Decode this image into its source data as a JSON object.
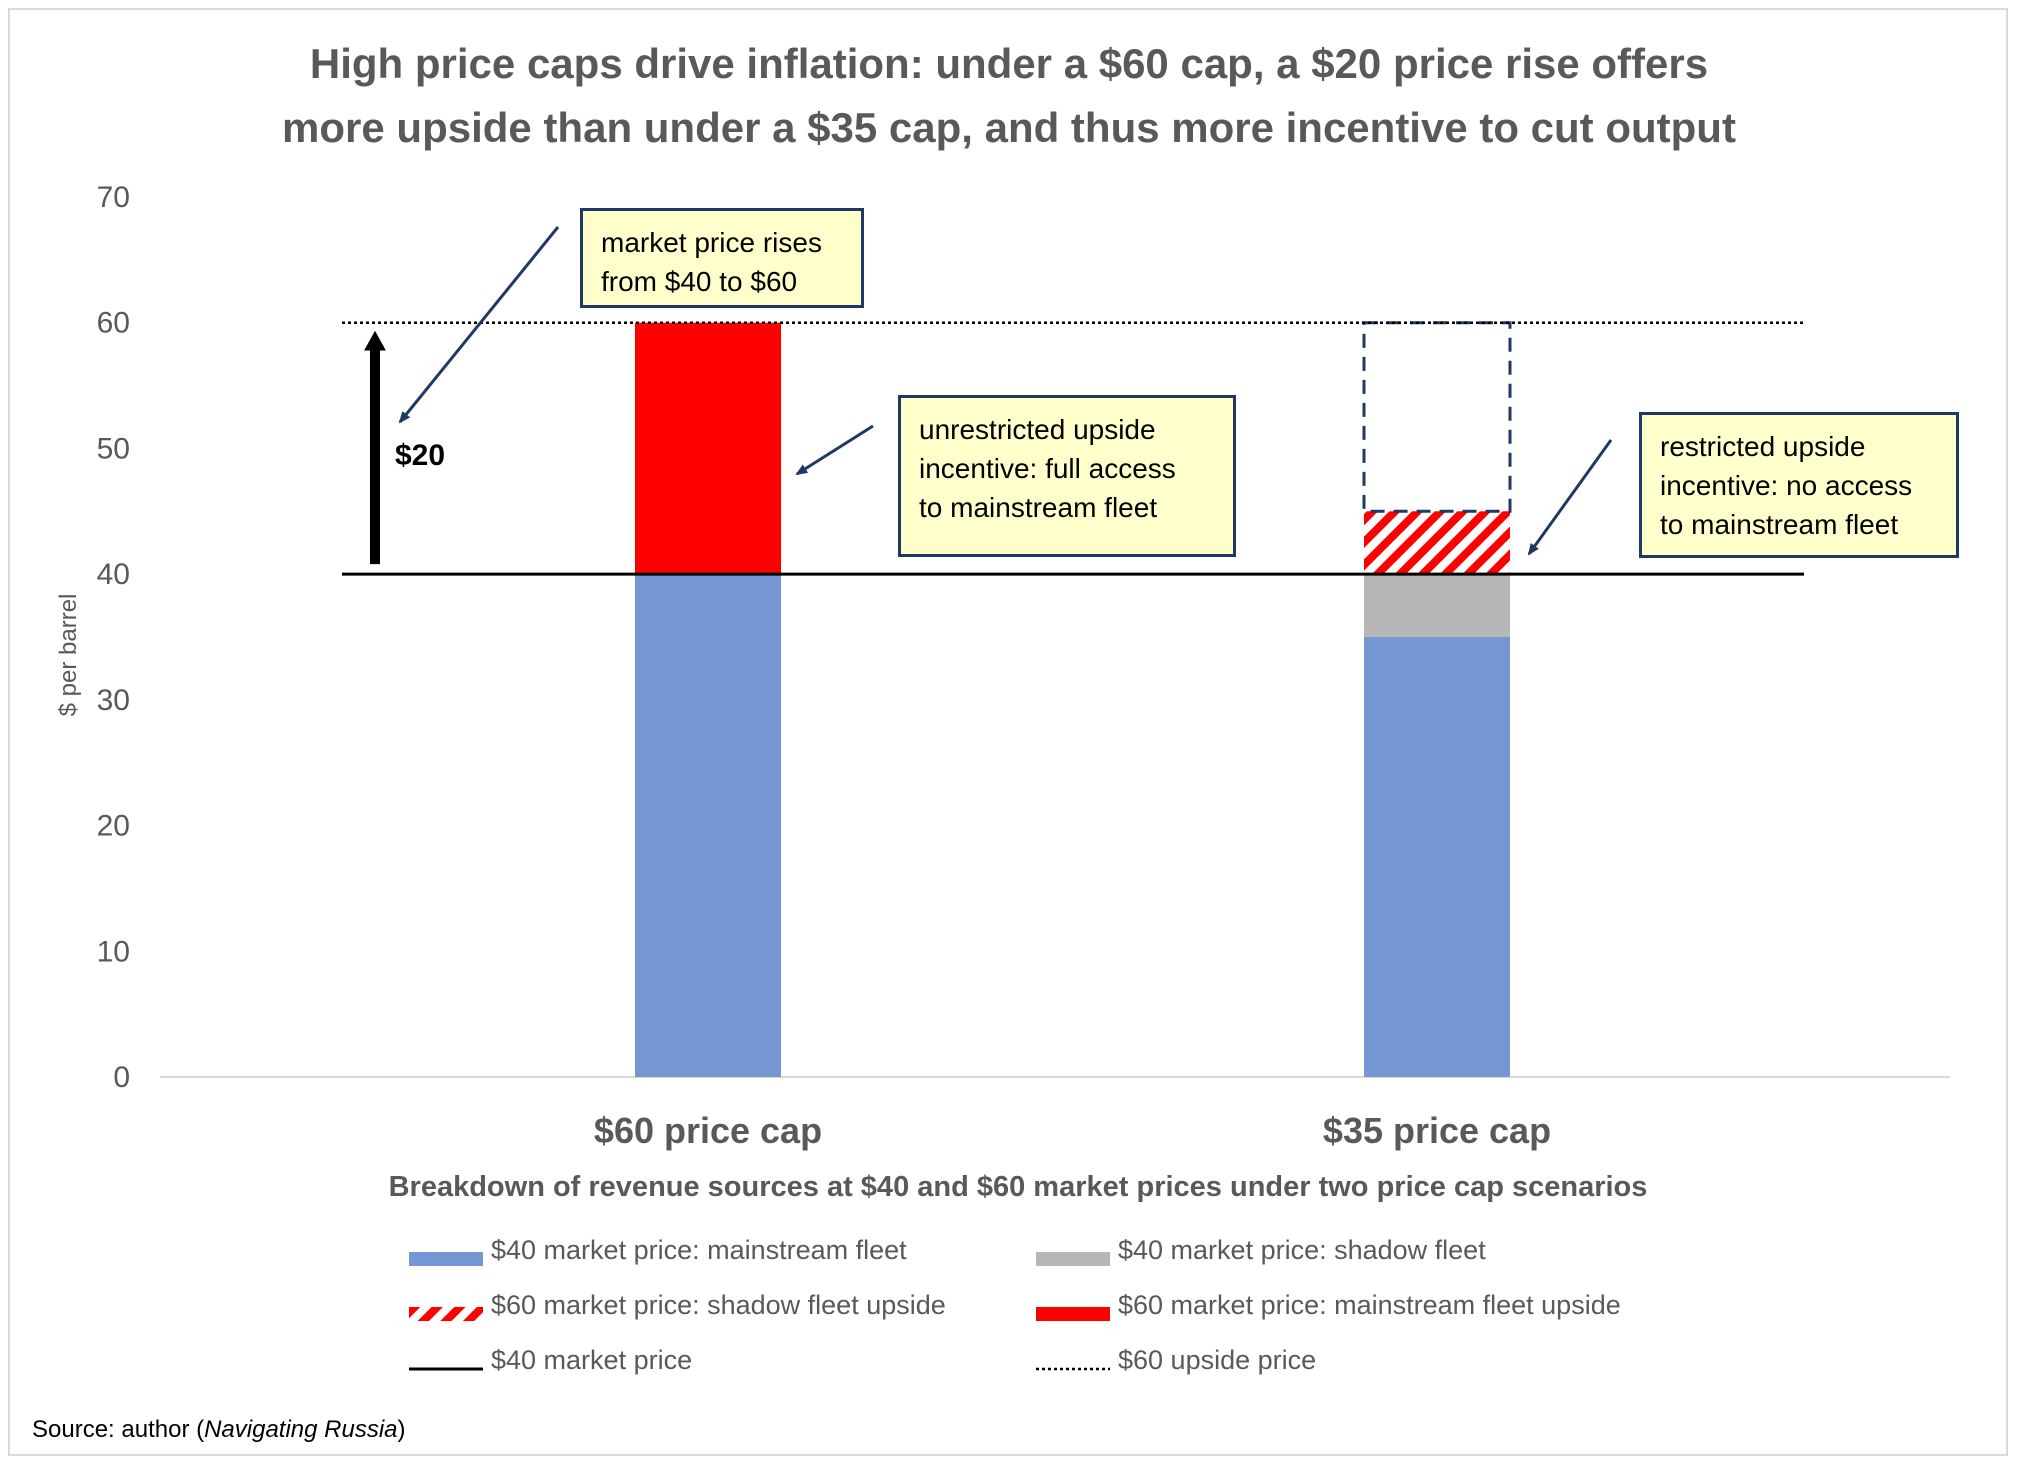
{
  "title": {
    "line1": "High price caps drive inflation: under a $60 cap, a $20 price rise offers",
    "line2": "more upside than under a $35 cap, and thus more incentive to cut output"
  },
  "chart_data": {
    "type": "bar",
    "stacked": true,
    "categories": [
      "$60 price cap",
      "$35 price cap"
    ],
    "series": [
      {
        "name": "$40 market price: mainstream fleet",
        "values": [
          40,
          35
        ],
        "color": "#7597d4"
      },
      {
        "name": "$40 market price: shadow fleet",
        "values": [
          0,
          5
        ],
        "color": "#b7b7b7"
      },
      {
        "name": "$60 market price: shadow fleet upside",
        "values": [
          0,
          5
        ],
        "color": "#ff0000",
        "pattern": "hatched"
      },
      {
        "name": "$60 market price: mainstream fleet upside",
        "values": [
          20,
          0
        ],
        "color": "#ff0000"
      }
    ],
    "reference_lines": [
      {
        "name": "$40 market price",
        "value": 40,
        "style": "solid",
        "color": "#000000"
      },
      {
        "name": "$60 upside price",
        "value": 60,
        "style": "dotted",
        "color": "#000000"
      }
    ],
    "unrealized_upside_outline": {
      "category": "$35 price cap",
      "from": 45,
      "to": 60,
      "style": "dashed",
      "color": "#1f3864"
    },
    "ylabel": "$ per barrel",
    "xlabel": "Breakdown of revenue sources at $40 and $60 market prices under two price cap scenarios",
    "ylim": [
      0,
      70
    ],
    "yticks": [
      0,
      10,
      20,
      30,
      40,
      50,
      60,
      70
    ],
    "grid": false,
    "legend_position": "bottom",
    "annotations": {
      "arrow_label": "$20",
      "callout_market": [
        "market price rises",
        "from $40 to $60"
      ],
      "callout_unrestricted": [
        "unrestricted upside",
        "incentive: full access",
        "to mainstream fleet"
      ],
      "callout_restricted": [
        "restricted upside",
        "incentive: no access",
        "to mainstream fleet"
      ]
    }
  },
  "source": {
    "prefix": "Source: author (",
    "italic": "Navigating Russia",
    "suffix": ")"
  }
}
